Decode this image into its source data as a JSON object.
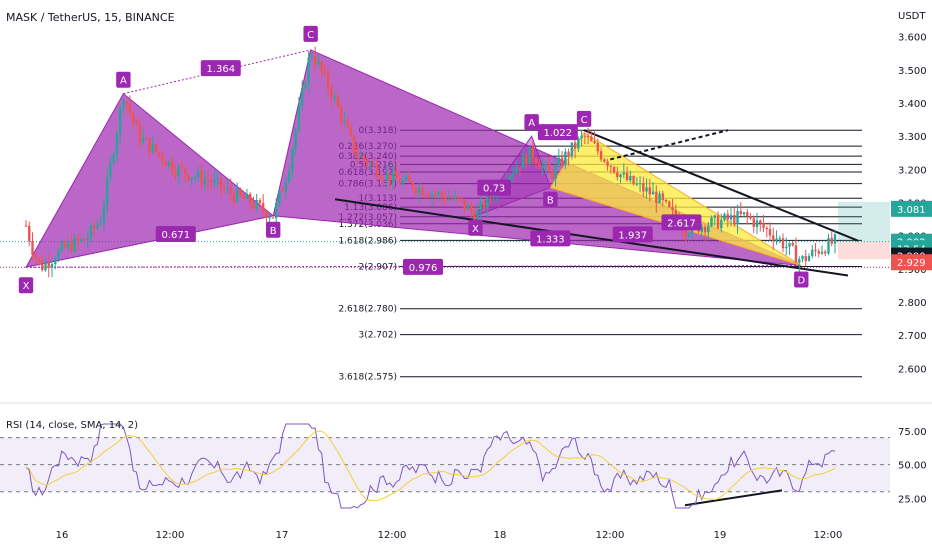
{
  "header": {
    "symbol": "MASK / TetherUS, 15, BINANCE",
    "currency": "USDT"
  },
  "colors": {
    "pattern": "#9c27b0",
    "up": "#26a69a",
    "down": "#ef5350",
    "rsi": "#7e57c2",
    "rsi_sma": "#f3cf3a",
    "label_bg": "#9c27b0",
    "yellow": "#ffeb3b"
  },
  "chart_data": {
    "type": "candlestick",
    "price_axis": {
      "ticks": [
        "3.600",
        "3.500",
        "3.400",
        "3.300",
        "3.200",
        "3.100",
        "3.000",
        "2.900",
        "2.800",
        "2.700",
        "2.600"
      ],
      "ylim": [
        2.55,
        3.62
      ],
      "tags": [
        {
          "value": 3.081,
          "text": "3.081",
          "color": "#26a69a"
        },
        {
          "value": 2.982,
          "text": "2.982",
          "color": "#26a69a"
        },
        {
          "value": 2.962,
          "text": "12:54",
          "color": "#26a69a"
        },
        {
          "value": 2.94,
          "text": "2.980",
          "color": "#131722"
        },
        {
          "value": 2.92,
          "text": "2.929",
          "color": "#ef5350"
        }
      ]
    },
    "x_axis": {
      "ticks": [
        "16",
        "12:00",
        "17",
        "12:00",
        "18",
        "12:00",
        "19",
        "12:00"
      ]
    },
    "harmonic_points": [
      {
        "name": "X",
        "t": 0.0,
        "price": 2.905
      },
      {
        "name": "A",
        "t": 13.0,
        "price": 3.428
      },
      {
        "name": "B",
        "t": 33.0,
        "price": 3.06
      },
      {
        "name": "C",
        "t": 38.0,
        "price": 3.56
      },
      {
        "name": "D",
        "t": 103.5,
        "price": 2.91
      }
    ],
    "pattern_labels": [
      "X",
      "A",
      "B",
      "C",
      "D"
    ],
    "ratios": [
      {
        "text": "1.364",
        "t": 26.0,
        "price": 3.505
      },
      {
        "text": "0.671",
        "t": 20.0,
        "price": 3.005
      },
      {
        "text": "0.976",
        "t": 53.0,
        "price": 2.906
      },
      {
        "text": "1.333",
        "t": 70.0,
        "price": 2.992
      },
      {
        "text": "1.937",
        "t": 81.0,
        "price": 3.004
      },
      {
        "text": "2.617",
        "t": 87.5,
        "price": 3.04
      }
    ],
    "inner_pattern": {
      "points": [
        {
          "name": "X",
          "t": 60.0,
          "price": 3.06
        },
        {
          "name": "A",
          "t": 67.5,
          "price": 3.3
        },
        {
          "name": "B",
          "t": 70.0,
          "price": 3.145
        },
        {
          "name": "C",
          "t": 74.5,
          "price": 3.31
        }
      ],
      "ratios": [
        {
          "text": "1.022",
          "t": 71.0,
          "price": 3.312
        },
        {
          "text": "0.73",
          "t": 62.5,
          "price": 3.145
        }
      ]
    },
    "fib_levels": [
      {
        "ratio": "0",
        "price": 3.318,
        "text": "0(3.318)"
      },
      {
        "ratio": "0.236",
        "price": 3.27,
        "text": "0.236(3.270)"
      },
      {
        "ratio": "0.382",
        "price": 3.24,
        "text": "0.382(3.240)"
      },
      {
        "ratio": "0.5",
        "price": 3.215,
        "text": "0.5(3.216)"
      },
      {
        "ratio": "0.618",
        "price": 3.192,
        "text": "0.618(3.192)"
      },
      {
        "ratio": "0.786",
        "price": 3.157,
        "text": "0.786(3.157)"
      },
      {
        "ratio": "1",
        "price": 3.113,
        "text": "1(3.113)"
      },
      {
        "ratio": "1.13",
        "price": 3.086,
        "text": "1.13(3.086)"
      },
      {
        "ratio": "1.272",
        "price": 3.057,
        "text": "1.272(3.057)"
      },
      {
        "ratio": "1.372",
        "price": 3.036,
        "text": "1.372(3.036)"
      },
      {
        "ratio": "1.618",
        "price": 2.986,
        "text": "1.618(2.986)"
      },
      {
        "ratio": "2",
        "price": 2.907,
        "text": "2(2.907)"
      },
      {
        "ratio": "2.618",
        "price": 2.78,
        "text": "2.618(2.780)"
      },
      {
        "ratio": "3",
        "price": 2.702,
        "text": "3(2.702)"
      },
      {
        "ratio": "3.618",
        "price": 2.575,
        "text": "3.618(2.575)"
      }
    ],
    "current_price": 2.982,
    "rsi": {
      "title": "RSI (14, close, SMA, 14, 2)",
      "ticks": [
        "75.00",
        "50.00",
        "25.00"
      ],
      "ylim": [
        15,
        83
      ],
      "upper": 70,
      "middle": 50,
      "lower": 30
    }
  }
}
